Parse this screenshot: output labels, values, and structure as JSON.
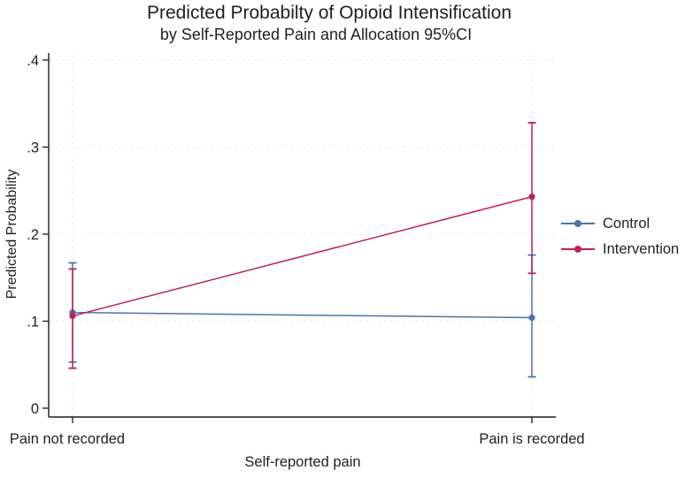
{
  "chart_data": {
    "type": "line",
    "title": "Predicted Probabilty of Opioid Intensification",
    "subtitle": "by Self-Reported Pain and Allocation 95%CI",
    "xlabel": "Self-reported pain",
    "ylabel": "Predicted Probability",
    "categories": [
      "Pain not recorded",
      "Pain is recorded"
    ],
    "yticks": [
      0,
      0.1,
      0.2,
      0.3,
      0.4
    ],
    "ytick_labels": [
      "0",
      ".1",
      ".2",
      ".3",
      ".4"
    ],
    "ylim": [
      0,
      0.42
    ],
    "grid": "dashed horizontal gridlines at y ticks and dashed vertical gridlines at categories",
    "legend_position": "right-outside-middle",
    "ci_level": "95%",
    "series": [
      {
        "name": "Control",
        "color": "#4a74ad",
        "values": [
          0.11,
          0.104
        ],
        "ci_low": [
          0.053,
          0.036
        ],
        "ci_high": [
          0.167,
          0.176
        ]
      },
      {
        "name": "Intervention",
        "color": "#c41e5c",
        "values": [
          0.106,
          0.243
        ],
        "ci_low": [
          0.046,
          0.155
        ],
        "ci_high": [
          0.16,
          0.328
        ]
      }
    ]
  }
}
